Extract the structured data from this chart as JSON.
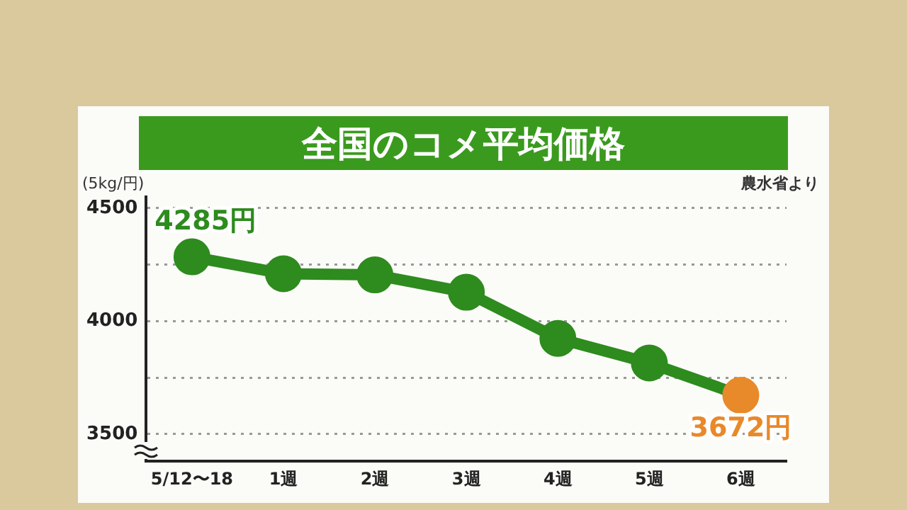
{
  "chart_data": {
    "type": "line",
    "title": "全国のコメ平均価格",
    "ylabel": "(5kg/円)",
    "annotations": [
      "農水省より"
    ],
    "categories": [
      "5/12〜18",
      "1週",
      "2週",
      "3週",
      "4週",
      "5週",
      "6週"
    ],
    "series": [
      {
        "color": "#2e8b1e",
        "colors": [
          "#2e8b1e",
          "#2e8b1e",
          "#2e8b1e",
          "#2e8b1e",
          "#2e8b1e",
          "#2e8b1e",
          "#e8892a"
        ],
        "values": [
          4285,
          4210,
          4205,
          4128,
          3924,
          3815,
          3672
        ],
        "value_labels": [
          "4285円",
          null,
          null,
          null,
          null,
          null,
          "3672円"
        ]
      }
    ],
    "ylim": [
      3380,
      4550
    ],
    "yticks": [
      3500,
      {
        "value": 3750,
        "label": null
      },
      4000,
      {
        "value": 4250,
        "label": null
      },
      4500
    ],
    "grid": "y",
    "marker": "circle",
    "line_style": "solid",
    "legend": false
  }
}
